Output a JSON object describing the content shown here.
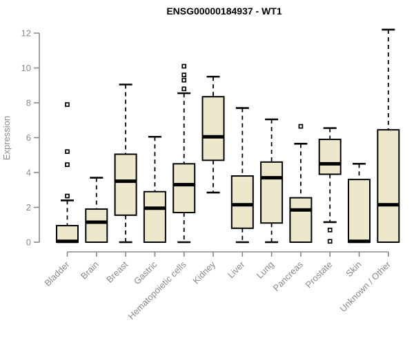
{
  "chart_data": {
    "type": "boxplot",
    "title": "ENSG00000184937 - WT1",
    "xlabel": "",
    "ylabel": "Expression",
    "ylim": [
      0,
      12.4
    ],
    "yticks": [
      0,
      2,
      4,
      6,
      8,
      10,
      12
    ],
    "grid": false,
    "legend": "none",
    "categories": [
      "Bladder",
      "Brain",
      "Breast",
      "Gastric",
      "Hematopoietic cells",
      "Kidney",
      "Liver",
      "Lung",
      "Pancreas",
      "Prostate",
      "Skin",
      "Unknown / Other"
    ],
    "series": [
      {
        "name": "Bladder",
        "low": 0,
        "q1": 0,
        "median": 0.05,
        "q3": 0.95,
        "high": 2.4,
        "outliers": [
          2.65,
          4.45,
          5.2,
          7.9
        ]
      },
      {
        "name": "Brain",
        "low": 0,
        "q1": 0,
        "median": 1.15,
        "q3": 1.9,
        "high": 3.7,
        "outliers": []
      },
      {
        "name": "Breast",
        "low": 0,
        "q1": 1.55,
        "median": 3.5,
        "q3": 5.05,
        "high": 9.05,
        "outliers": []
      },
      {
        "name": "Gastric",
        "low": 0,
        "q1": 0,
        "median": 1.95,
        "q3": 2.9,
        "high": 6.05,
        "outliers": []
      },
      {
        "name": "Hematopoietic cells",
        "low": 0,
        "q1": 1.7,
        "median": 3.3,
        "q3": 4.5,
        "high": 8.55,
        "outliers": [
          8.8,
          9.3,
          9.6,
          10.1
        ]
      },
      {
        "name": "Kidney",
        "low": 2.85,
        "q1": 4.7,
        "median": 6.05,
        "q3": 8.35,
        "high": 9.5,
        "outliers": []
      },
      {
        "name": "Liver",
        "low": 0,
        "q1": 0.8,
        "median": 2.15,
        "q3": 3.8,
        "high": 7.7,
        "outliers": []
      },
      {
        "name": "Lung",
        "low": 0,
        "q1": 1.1,
        "median": 3.7,
        "q3": 4.6,
        "high": 7.05,
        "outliers": []
      },
      {
        "name": "Pancreas",
        "low": 0,
        "q1": 0,
        "median": 1.85,
        "q3": 2.55,
        "high": 5.65,
        "outliers": [
          6.65
        ]
      },
      {
        "name": "Prostate",
        "low": 1.15,
        "q1": 3.9,
        "median": 4.5,
        "q3": 5.9,
        "high": 6.55,
        "outliers": [
          0.7,
          0.05
        ]
      },
      {
        "name": "Skin",
        "low": 0,
        "q1": 0,
        "median": 0.05,
        "q3": 3.6,
        "high": 4.5,
        "outliers": []
      },
      {
        "name": "Unknown / Other",
        "low": 0,
        "q1": 0,
        "median": 2.15,
        "q3": 6.45,
        "high": 12.2,
        "outliers": []
      }
    ],
    "colors": {
      "box_fill": "#EDE7CB",
      "box_stroke": "#000000",
      "median": "#000000",
      "whisker": "#000000",
      "axis": "#878787",
      "label": "#8A8A8A",
      "title": "#000000",
      "background": "#FFFFFF"
    }
  }
}
